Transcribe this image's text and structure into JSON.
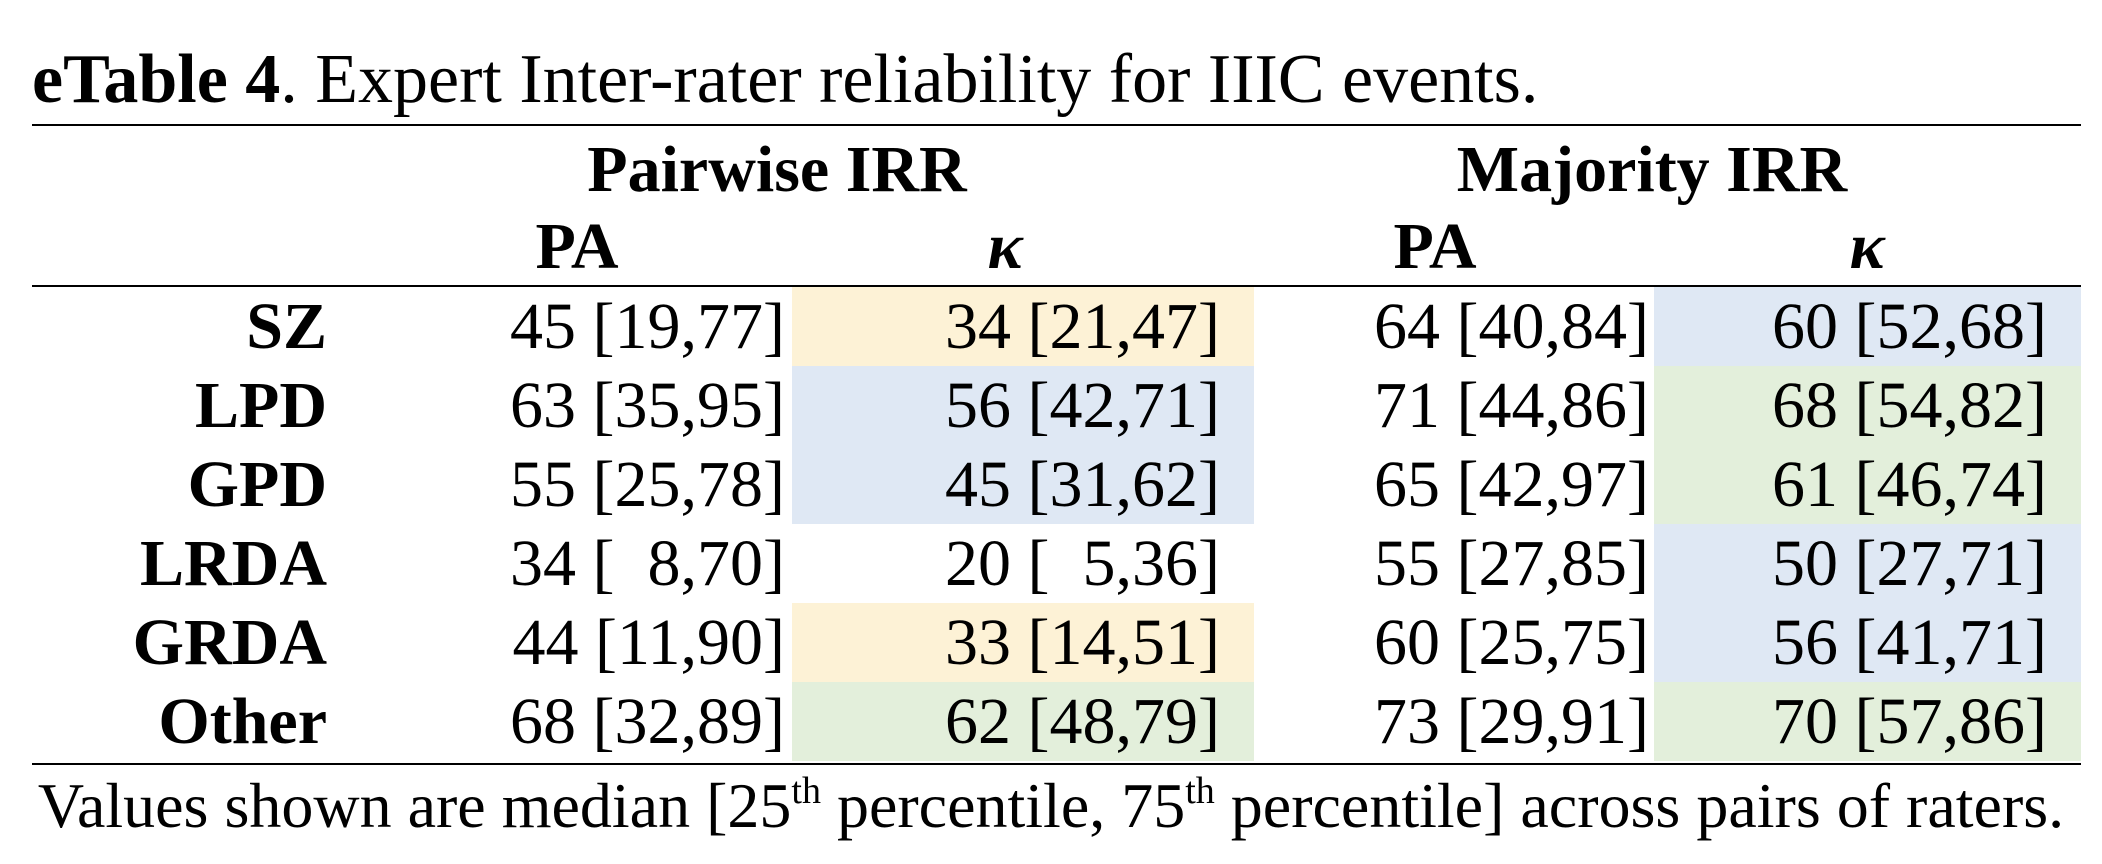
{
  "caption": {
    "label": "eTable 4",
    "text": ". Expert Inter-rater reliability for IIIC events."
  },
  "headers": {
    "group1": "Pairwise IRR",
    "group2": "Majority IRR",
    "pa1": "PA",
    "kappa1": "κ",
    "pa2": "PA",
    "kappa2": "κ"
  },
  "colors": {
    "yellow": "#fdf2d6",
    "blue": "#dfe8f4",
    "green": "#e3efdb"
  },
  "rows": [
    {
      "label": "SZ",
      "pa1": "45 [19,77]",
      "k1": "34 [21,47]",
      "k1_color": "yellow",
      "pa2": "64 [40,84]",
      "k2": "60 [52,68]",
      "k2_color": "blue"
    },
    {
      "label": "LPD",
      "pa1": "63 [35,95]",
      "k1": "56 [42,71]",
      "k1_color": "blue",
      "pa2": "71 [44,86]",
      "k2": "68 [54,82]",
      "k2_color": "green"
    },
    {
      "label": "GPD",
      "pa1": "55 [25,78]",
      "k1": "45 [31,62]",
      "k1_color": "blue",
      "pa2": "65 [42,97]",
      "k2": "61 [46,74]",
      "k2_color": "green"
    },
    {
      "label": "LRDA",
      "pa1": "34 [  8,70]",
      "k1": "20 [  5,36]",
      "k1_color": "none",
      "pa2": "55 [27,85]",
      "k2": "50 [27,71]",
      "k2_color": "blue"
    },
    {
      "label": "GRDA",
      "pa1": "44 [11,90]",
      "k1": "33 [14,51]",
      "k1_color": "yellow",
      "pa2": "60 [25,75]",
      "k2": "56 [41,71]",
      "k2_color": "blue"
    },
    {
      "label": "Other",
      "pa1": "68 [32,89]",
      "k1": "62 [48,79]",
      "k1_color": "green",
      "pa2": "73 [29,91]",
      "k2": "70 [57,86]",
      "k2_color": "green"
    }
  ],
  "footnote": {
    "part1": "Values shown are median [25",
    "sup1": "th",
    "part2": " percentile, 75",
    "sup2": "th",
    "part3": " percentile] across pairs of raters."
  }
}
